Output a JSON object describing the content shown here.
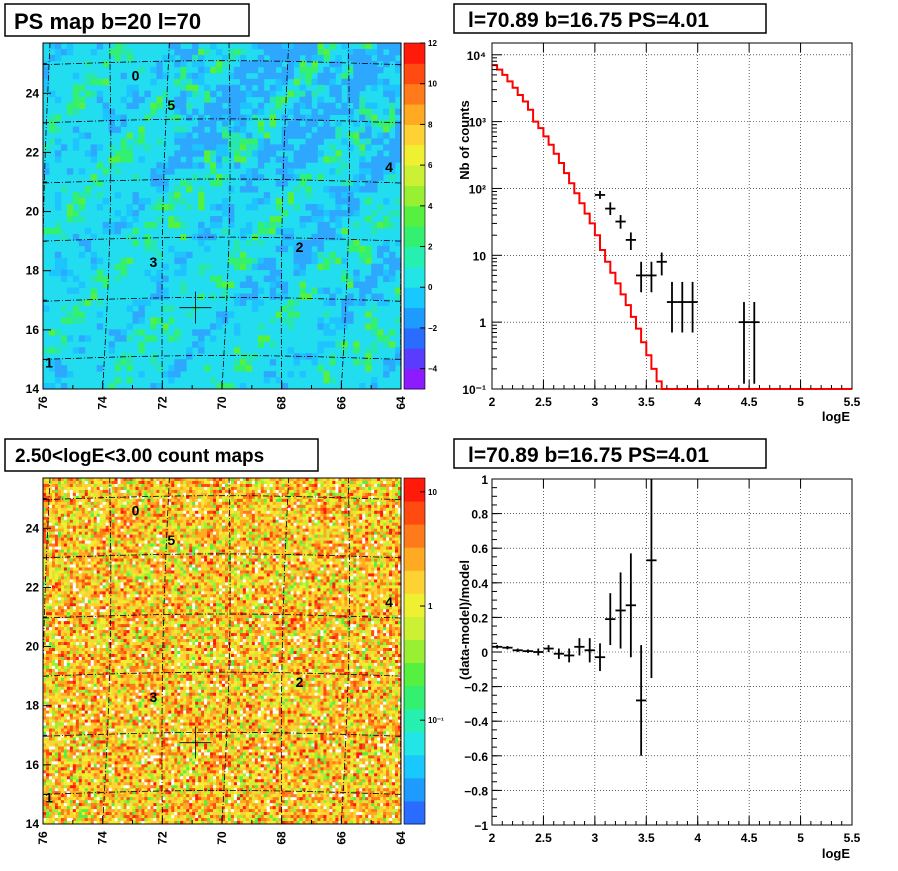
{
  "panels": {
    "ps_map": {
      "title": "PS map b=20 l=70",
      "x_ticks": [
        "76",
        "74",
        "72",
        "70",
        "68",
        "66",
        "64"
      ],
      "y_ticks": [
        "14",
        "16",
        "18",
        "20",
        "22",
        "24"
      ],
      "colorbar_ticks": [
        "−4",
        "−2",
        "0",
        "2",
        "4",
        "6",
        "8",
        "10",
        "12"
      ],
      "sources": [
        {
          "label": "0",
          "l": 72.9,
          "b": 24.6
        },
        {
          "label": "5",
          "l": 71.7,
          "b": 23.6
        },
        {
          "label": "4",
          "l": 64.4,
          "b": 21.5
        },
        {
          "label": "2",
          "l": 67.4,
          "b": 18.8
        },
        {
          "label": "3",
          "l": 72.3,
          "b": 18.3
        },
        {
          "label": "1",
          "l": 75.8,
          "b": 14.9
        }
      ],
      "marker": {
        "l": 70.89,
        "b": 16.75
      }
    },
    "count_map": {
      "title": "2.50<logE<3.00 count maps",
      "x_ticks": [
        "76",
        "74",
        "72",
        "70",
        "68",
        "66",
        "64"
      ],
      "y_ticks": [
        "14",
        "16",
        "18",
        "20",
        "22",
        "24"
      ],
      "colorbar_ticks": [
        "10",
        "1",
        "10⁻¹"
      ],
      "sources": [
        {
          "label": "0",
          "l": 72.9,
          "b": 24.6
        },
        {
          "label": "5",
          "l": 71.7,
          "b": 23.6
        },
        {
          "label": "4",
          "l": 64.4,
          "b": 21.5
        },
        {
          "label": "2",
          "l": 67.4,
          "b": 18.8
        },
        {
          "label": "3",
          "l": 72.3,
          "b": 18.3
        },
        {
          "label": "1",
          "l": 75.8,
          "b": 14.9
        }
      ],
      "marker": {
        "l": 70.89,
        "b": 16.75
      }
    },
    "spectrum": {
      "title": "l=70.89 b=16.75 PS=4.01",
      "xlabel": "logE",
      "ylabel": "Nb of counts",
      "x_ticks": [
        "2",
        "2.5",
        "3",
        "3.5",
        "4",
        "4.5",
        "5",
        "5.5"
      ],
      "y_ticks": [
        "10⁴",
        "10³",
        "10²",
        "10",
        "1",
        "10⁻¹"
      ]
    },
    "residual": {
      "title": "l=70.89 b=16.75 PS=4.01",
      "xlabel": "logE",
      "ylabel": "(data-model)/model",
      "x_ticks": [
        "2",
        "2.5",
        "3",
        "3.5",
        "4",
        "4.5",
        "5",
        "5.5"
      ],
      "y_ticks": [
        "−1",
        "−0.8",
        "−0.6",
        "−0.4",
        "−0.2",
        "0",
        "0.2",
        "0.4",
        "0.6",
        "0.8",
        "1"
      ]
    }
  },
  "chart_data": [
    {
      "type": "heatmap",
      "title": "PS map b=20 l=70",
      "xlim": [
        76,
        64
      ],
      "ylim": [
        14,
        25.7
      ],
      "zlim": [
        -5,
        12
      ],
      "grid": true
    },
    {
      "type": "line",
      "title": "l=70.89 b=16.75 PS=4.01",
      "xlabel": "logE",
      "ylabel": "Nb of counts",
      "xlim": [
        2,
        5.5
      ],
      "ylim": [
        0.1,
        15000
      ],
      "log_y": true,
      "grid": true,
      "series": [
        {
          "style": "model_histogram",
          "color": "#ff0000",
          "edges": [
            2.0,
            2.05,
            2.1,
            2.15,
            2.2,
            2.25,
            2.3,
            2.35,
            2.4,
            2.45,
            2.5,
            2.55,
            2.6,
            2.65,
            2.7,
            2.75,
            2.8,
            2.85,
            2.9,
            2.95,
            3.0,
            3.05,
            3.1,
            3.15,
            3.2,
            3.25,
            3.3,
            3.35,
            3.4,
            3.45,
            3.5,
            3.55,
            3.6,
            3.65,
            3.7,
            3.75,
            3.8,
            3.85,
            3.9,
            3.95,
            4.0,
            4.05,
            4.1,
            4.15
          ],
          "values": [
            7000,
            6000,
            5000,
            4000,
            3200,
            2500,
            2000,
            1500,
            1000,
            800,
            600,
            450,
            330,
            240,
            170,
            120,
            85,
            60,
            42,
            30,
            20,
            12,
            8,
            5.5,
            3.8,
            2.6,
            1.8,
            1.2,
            0.8,
            0.5,
            0.32,
            0.2,
            0.13,
            0.1,
            0.1,
            0.1,
            0.1,
            0.1,
            0.1,
            0.1,
            0.1,
            0.1,
            0.1
          ],
          "tail_to": 5.5
        },
        {
          "style": "data_points",
          "color": "#000000",
          "points": [
            {
              "x": 3.05,
              "y": 80,
              "xerr": 0.05
            },
            {
              "x": 3.15,
              "y": 50,
              "xerr": 0.05,
              "ylo": 40,
              "yhi": 62
            },
            {
              "x": 3.25,
              "y": 32,
              "xerr": 0.05,
              "ylo": 25,
              "yhi": 40
            },
            {
              "x": 3.35,
              "y": 17,
              "xerr": 0.05,
              "ylo": 12,
              "yhi": 22
            },
            {
              "x": 3.45,
              "y": 5,
              "xerr": 0.05,
              "ylo": 2.8,
              "yhi": 8
            },
            {
              "x": 3.55,
              "y": 5,
              "xerr": 0.05,
              "ylo": 2.8,
              "yhi": 8
            },
            {
              "x": 3.65,
              "y": 8,
              "xerr": 0.05,
              "ylo": 5,
              "yhi": 11
            },
            {
              "x": 3.75,
              "y": 2,
              "xerr": 0.05,
              "ylo": 0.7,
              "yhi": 4
            },
            {
              "x": 3.85,
              "y": 2,
              "xerr": 0.05,
              "ylo": 0.7,
              "yhi": 4
            },
            {
              "x": 3.95,
              "y": 2,
              "xerr": 0.05,
              "ylo": 0.7,
              "yhi": 4
            },
            {
              "x": 4.45,
              "y": 1,
              "xerr": 0.05,
              "ylo": 0.12,
              "yhi": 2
            },
            {
              "x": 4.55,
              "y": 1,
              "xerr": 0.05,
              "ylo": 0.12,
              "yhi": 2
            }
          ]
        }
      ]
    },
    {
      "type": "heatmap",
      "title": "2.50<logE<3.00 count maps",
      "xlim": [
        76,
        64
      ],
      "ylim": [
        14,
        25.7
      ],
      "zlim": [
        0.01,
        13
      ],
      "log_z": true,
      "grid": true
    },
    {
      "type": "scatter",
      "title": "l=70.89 b=16.75 PS=4.01",
      "xlabel": "logE",
      "ylabel": "(data-model)/model",
      "xlim": [
        2,
        5.5
      ],
      "ylim": [
        -1,
        1
      ],
      "grid": true,
      "points": [
        {
          "x": 2.05,
          "y": 0.03,
          "xerr": 0.05,
          "yerr": 0.01
        },
        {
          "x": 2.15,
          "y": 0.025,
          "xerr": 0.05,
          "yerr": 0.01
        },
        {
          "x": 2.25,
          "y": 0.01,
          "xerr": 0.05,
          "yerr": 0.01
        },
        {
          "x": 2.35,
          "y": 0.005,
          "xerr": 0.05,
          "yerr": 0.01
        },
        {
          "x": 2.45,
          "y": 0.0,
          "xerr": 0.05,
          "yerr": 0.02
        },
        {
          "x": 2.55,
          "y": 0.02,
          "xerr": 0.05,
          "yerr": 0.02
        },
        {
          "x": 2.65,
          "y": -0.01,
          "xerr": 0.05,
          "yerr": 0.03
        },
        {
          "x": 2.75,
          "y": -0.02,
          "xerr": 0.05,
          "yerr": 0.04
        },
        {
          "x": 2.85,
          "y": 0.03,
          "xerr": 0.05,
          "yerr": 0.05
        },
        {
          "x": 2.95,
          "y": 0.01,
          "xerr": 0.05,
          "yerr": 0.07
        },
        {
          "x": 3.05,
          "y": -0.03,
          "xerr": 0.05,
          "yerr": 0.08
        },
        {
          "x": 3.15,
          "y": 0.19,
          "xerr": 0.05,
          "yerr": 0.15
        },
        {
          "x": 3.25,
          "y": 0.24,
          "xerr": 0.05,
          "yerr": 0.22
        },
        {
          "x": 3.35,
          "y": 0.27,
          "xerr": 0.05,
          "yerr": 0.3
        },
        {
          "x": 3.45,
          "y": -0.28,
          "xerr": 0.05,
          "yerr": 0.32
        },
        {
          "x": 3.55,
          "y": 0.53,
          "xerr": 0.05,
          "yerr": 0.68
        }
      ]
    }
  ]
}
